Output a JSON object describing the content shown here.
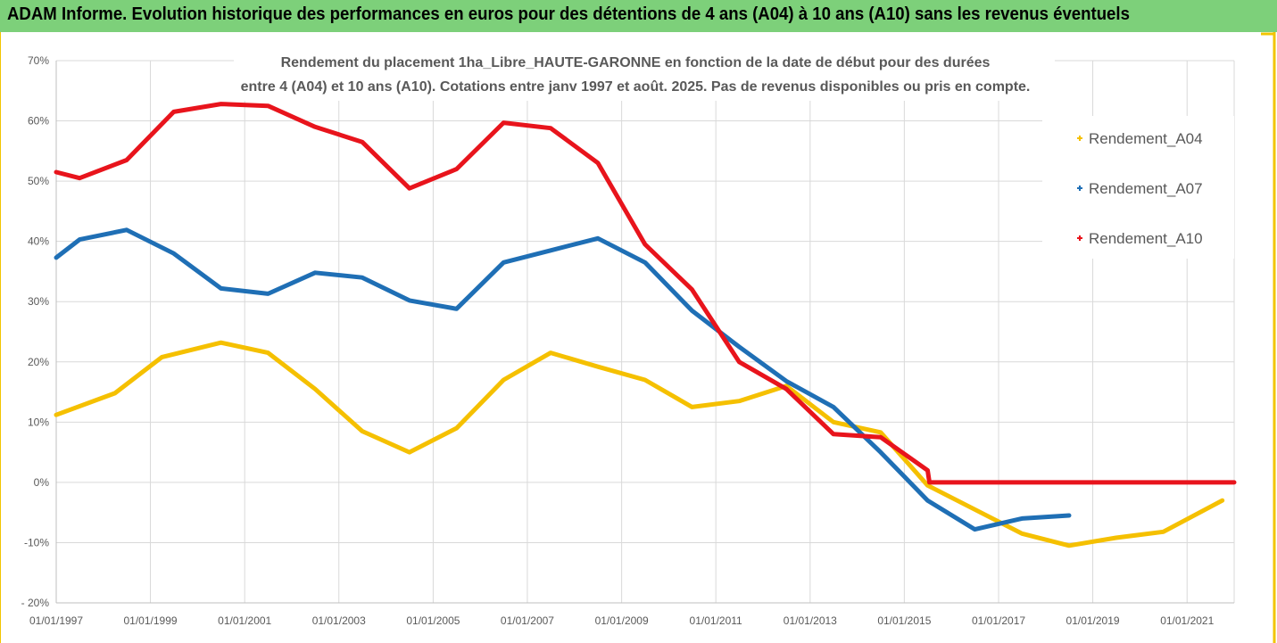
{
  "header": {
    "banner": "ADAM Informe. Evolution historique des performances en euros pour des détentions de 4 ans (A04) à 10 ans (A10) sans les revenus éventuels"
  },
  "colors": {
    "banner_bg": "#7dd07a",
    "frame_accent": "#f2c500",
    "gridline": "#d9d9d9",
    "axis_text": "#595959"
  },
  "chart_data": {
    "type": "line",
    "title_lines": [
      "Rendement du placement 1ha_Libre_HAUTE-GARONNE en fonction de la date de début pour des durées",
      "entre 4 (A04) et 10 ans (A10). Cotations entre janv 1997 et août. 2025. Pas de revenus disponibles ou pris en compte."
    ],
    "xlabel": "",
    "ylabel": "",
    "x_ticks": [
      "01/01/1997",
      "01/01/1999",
      "01/01/2001",
      "01/01/2003",
      "01/01/2005",
      "01/01/2007",
      "01/01/2009",
      "01/01/2011",
      "01/01/2013",
      "01/01/2015",
      "01/01/2017",
      "01/01/2019",
      "01/01/2021"
    ],
    "xlim": [
      "1997-01-01",
      "2022-01-01"
    ],
    "ylim": [
      -20,
      70
    ],
    "y_ticks": [
      -20,
      -10,
      0,
      10,
      20,
      30,
      40,
      50,
      60,
      70
    ],
    "y_tick_labels": [
      "- 20%",
      "-10%",
      "0%",
      "10%",
      "20%",
      "30%",
      "40%",
      "50%",
      "60%",
      "70%"
    ],
    "grid": true,
    "legend_position": "right",
    "series": [
      {
        "name": "Rendement_A04",
        "color": "#f5c000",
        "points": [
          [
            "1997-01-01",
            11.2
          ],
          [
            "1998-04-01",
            14.8
          ],
          [
            "1999-04-01",
            20.8
          ],
          [
            "2000-07-01",
            23.2
          ],
          [
            "2001-07-01",
            21.5
          ],
          [
            "2002-07-01",
            15.5
          ],
          [
            "2003-07-01",
            8.5
          ],
          [
            "2004-07-01",
            5.0
          ],
          [
            "2005-07-01",
            9.0
          ],
          [
            "2006-07-01",
            17.0
          ],
          [
            "2007-07-01",
            21.5
          ],
          [
            "2008-07-01",
            19.2
          ],
          [
            "2009-07-01",
            17.0
          ],
          [
            "2010-07-01",
            12.5
          ],
          [
            "2011-07-01",
            13.5
          ],
          [
            "2012-07-01",
            16.0
          ],
          [
            "2013-07-01",
            10.0
          ],
          [
            "2014-07-01",
            8.3
          ],
          [
            "2015-07-01",
            -0.5
          ],
          [
            "2016-07-01",
            -4.5
          ],
          [
            "2017-07-01",
            -8.5
          ],
          [
            "2018-07-01",
            -10.5
          ],
          [
            "2019-07-01",
            -9.2
          ],
          [
            "2020-07-01",
            -8.2
          ],
          [
            "2021-10-01",
            -3.0
          ]
        ]
      },
      {
        "name": "Rendement_A07",
        "color": "#1f6fb5",
        "points": [
          [
            "1997-01-01",
            37.3
          ],
          [
            "1997-07-01",
            40.3
          ],
          [
            "1998-07-01",
            41.9
          ],
          [
            "1999-07-01",
            38.0
          ],
          [
            "2000-07-01",
            32.2
          ],
          [
            "2001-07-01",
            31.3
          ],
          [
            "2002-07-01",
            34.8
          ],
          [
            "2003-07-01",
            34.0
          ],
          [
            "2004-07-01",
            30.2
          ],
          [
            "2005-07-01",
            28.8
          ],
          [
            "2006-07-01",
            36.5
          ],
          [
            "2007-07-01",
            38.5
          ],
          [
            "2008-07-01",
            40.5
          ],
          [
            "2009-07-01",
            36.5
          ],
          [
            "2010-07-01",
            28.5
          ],
          [
            "2011-07-01",
            22.5
          ],
          [
            "2012-07-01",
            16.8
          ],
          [
            "2013-07-01",
            12.5
          ],
          [
            "2014-07-01",
            5.0
          ],
          [
            "2015-07-01",
            -3.0
          ],
          [
            "2016-07-01",
            -7.8
          ],
          [
            "2017-07-01",
            -6.0
          ],
          [
            "2018-07-01",
            -5.5
          ]
        ]
      },
      {
        "name": "Rendement_A10",
        "color": "#e8141c",
        "points": [
          [
            "1997-01-01",
            51.5
          ],
          [
            "1997-07-01",
            50.5
          ],
          [
            "1998-07-01",
            53.5
          ],
          [
            "1999-07-01",
            61.5
          ],
          [
            "2000-07-01",
            62.8
          ],
          [
            "2001-07-01",
            62.5
          ],
          [
            "2002-07-01",
            59.0
          ],
          [
            "2003-07-01",
            56.5
          ],
          [
            "2004-07-01",
            48.8
          ],
          [
            "2005-07-01",
            52.0
          ],
          [
            "2006-07-01",
            59.7
          ],
          [
            "2007-07-01",
            58.8
          ],
          [
            "2008-07-01",
            53.0
          ],
          [
            "2009-07-01",
            39.5
          ],
          [
            "2010-07-01",
            32.0
          ],
          [
            "2011-07-01",
            20.0
          ],
          [
            "2012-07-01",
            15.5
          ],
          [
            "2013-07-01",
            8.0
          ],
          [
            "2014-07-01",
            7.5
          ],
          [
            "2015-07-01",
            2.0
          ],
          [
            "2015-07-15",
            0.0
          ],
          [
            "2022-01-01",
            0.0
          ]
        ]
      }
    ]
  }
}
